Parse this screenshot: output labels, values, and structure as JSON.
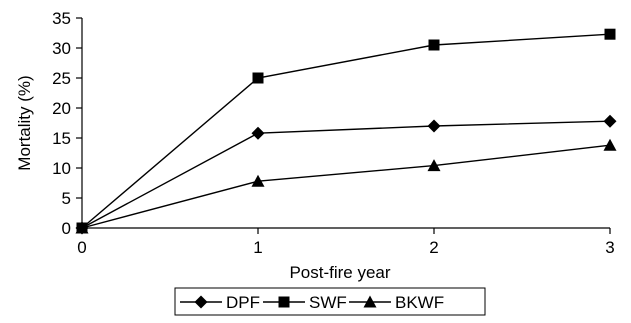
{
  "chart_data": {
    "type": "line",
    "title": "",
    "xlabel": "Post-fire year",
    "ylabel": "Mortality (%)",
    "x": [
      0,
      1,
      2,
      3
    ],
    "xlim": [
      0,
      3
    ],
    "ylim": [
      0,
      35
    ],
    "x_ticks": [
      "0",
      "1",
      "2",
      "3"
    ],
    "y_ticks": [
      "0",
      "5",
      "10",
      "15",
      "20",
      "25",
      "30",
      "35"
    ],
    "grid": false,
    "legend_position": "bottom",
    "series": [
      {
        "name": "DPF",
        "marker": "diamond",
        "values": [
          0,
          15.8,
          17.0,
          17.8
        ]
      },
      {
        "name": "SWF",
        "marker": "square",
        "values": [
          0,
          25.0,
          30.5,
          32.3
        ]
      },
      {
        "name": "BKWF",
        "marker": "triangle",
        "values": [
          0,
          7.8,
          10.4,
          13.8
        ]
      }
    ]
  }
}
